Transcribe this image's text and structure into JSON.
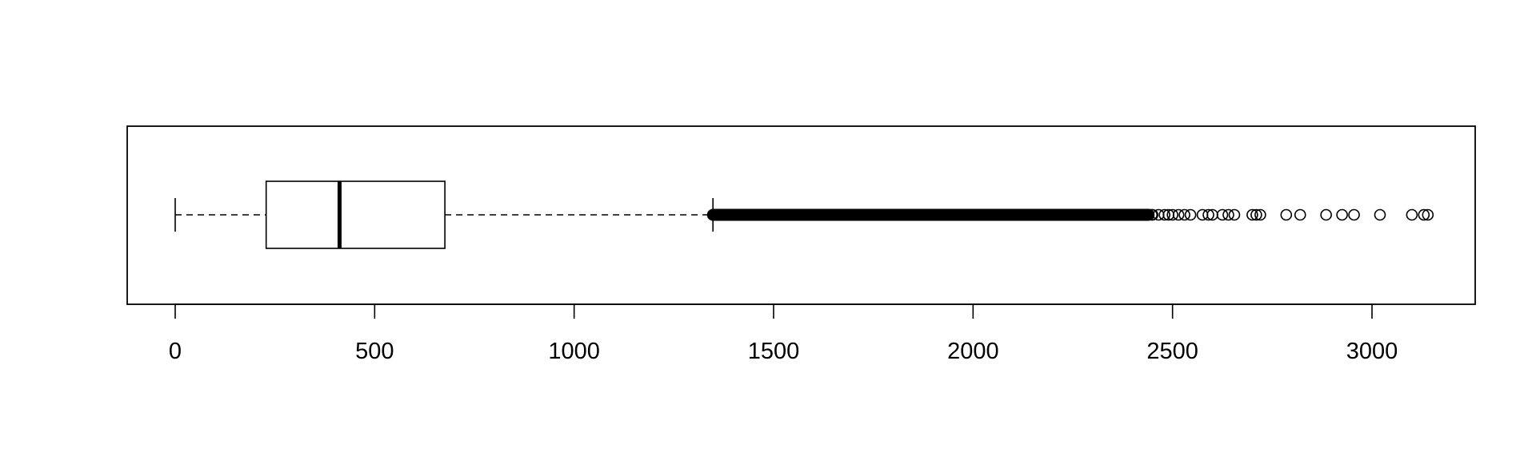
{
  "chart_data": {
    "type": "boxplot",
    "orientation": "horizontal",
    "title": "",
    "xlabel": "",
    "ylabel": "",
    "xlim": [
      -125,
      3260
    ],
    "x_ticks": [
      0,
      500,
      1000,
      1500,
      2000,
      2500,
      3000
    ],
    "x_tick_labels": [
      "0",
      "500",
      "1000",
      "1500",
      "2000",
      "2500",
      "3000"
    ],
    "box": {
      "whisker_low": 0,
      "q1": 228,
      "median": 412,
      "q3": 676,
      "whisker_high": 1348
    },
    "outliers": {
      "dense_range": [
        1348,
        2440
      ],
      "individual": [
        2450,
        2465,
        2480,
        2490,
        2500,
        2515,
        2530,
        2545,
        2575,
        2590,
        2600,
        2625,
        2640,
        2655,
        2700,
        2710,
        2720,
        2785,
        2820,
        2885,
        2925,
        2955,
        3020,
        3100,
        3130,
        3140
      ],
      "marker": "open-circle"
    },
    "grid": false,
    "legend": "none"
  }
}
